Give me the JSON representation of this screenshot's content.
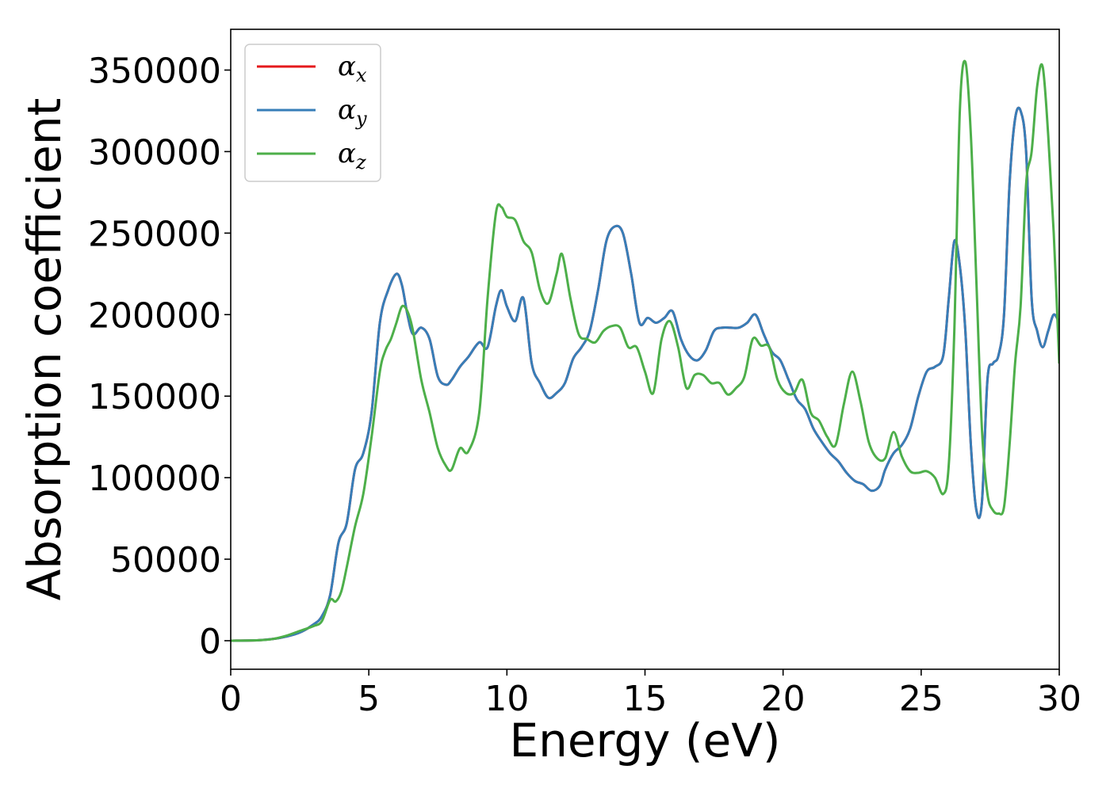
{
  "chart_data": {
    "type": "line",
    "xlabel": "Energy (eV)",
    "ylabel": "Absorption coefficient",
    "xlim": [
      0,
      30
    ],
    "ylim": [
      -17500,
      375000
    ],
    "x_ticks": [
      "0",
      "5",
      "10",
      "15",
      "20",
      "25",
      "30"
    ],
    "y_ticks": [
      "0",
      "50000",
      "100000",
      "150000",
      "200000",
      "250000",
      "300000",
      "350000"
    ],
    "grid": false,
    "legend_position": "top-left",
    "series": [
      {
        "name": "α",
        "subscript": "x",
        "color": "#e41a1c",
        "x": [
          0,
          1,
          1.5,
          2,
          2.5,
          3,
          3.3,
          3.6,
          3.9,
          4.2,
          4.5,
          4.8,
          5.1,
          5.4,
          5.7,
          6.0,
          6.2,
          6.4,
          6.6,
          6.9,
          7.2,
          7.5,
          7.8,
          8.0,
          8.3,
          8.6,
          9.0,
          9.3,
          9.6,
          9.8,
          10.0,
          10.3,
          10.6,
          10.9,
          11.2,
          11.5,
          11.8,
          12.1,
          12.4,
          12.7,
          13.0,
          13.3,
          13.6,
          13.9,
          14.2,
          14.5,
          14.8,
          15.1,
          15.4,
          15.7,
          16.0,
          16.3,
          16.6,
          16.9,
          17.2,
          17.5,
          17.8,
          18.1,
          18.4,
          18.7,
          19.0,
          19.3,
          19.6,
          19.9,
          20.2,
          20.5,
          20.8,
          21.1,
          21.4,
          21.7,
          22.0,
          22.3,
          22.6,
          22.9,
          23.2,
          23.5,
          23.7,
          24.0,
          24.3,
          24.6,
          24.9,
          25.2,
          25.5,
          25.8,
          26.0,
          26.2,
          26.4,
          26.6,
          26.8,
          27.0,
          27.2,
          27.4,
          27.6,
          27.8,
          28.0,
          28.2,
          28.4,
          28.6,
          28.8,
          29.0,
          29.2,
          29.4,
          29.6,
          29.8,
          30.0
        ],
        "y": [
          0,
          300,
          1000,
          2500,
          5000,
          10000,
          15000,
          28000,
          60000,
          72000,
          105000,
          115000,
          140000,
          195000,
          215000,
          225000,
          218000,
          200000,
          188000,
          192000,
          185000,
          162000,
          157000,
          160000,
          168000,
          174000,
          183000,
          180000,
          205000,
          215000,
          205000,
          196000,
          210000,
          170000,
          158000,
          149000,
          152000,
          158000,
          173000,
          180000,
          190000,
          215000,
          245000,
          254000,
          250000,
          225000,
          195000,
          198000,
          195000,
          198000,
          202000,
          185000,
          175000,
          172000,
          178000,
          190000,
          192000,
          192000,
          192000,
          195000,
          200000,
          188000,
          177000,
          172000,
          160000,
          148000,
          142000,
          130000,
          122000,
          115000,
          110000,
          103000,
          98000,
          96000,
          92000,
          95000,
          105000,
          115000,
          120000,
          130000,
          150000,
          165000,
          168000,
          175000,
          210000,
          245000,
          230000,
          190000,
          120000,
          80000,
          85000,
          160000,
          170000,
          175000,
          200000,
          280000,
          320000,
          325000,
          300000,
          210000,
          190000,
          180000,
          190000,
          200000,
          195000
        ]
      },
      {
        "name": "α",
        "subscript": "y",
        "color": "#377eb8",
        "x": [
          0,
          1,
          1.5,
          2,
          2.5,
          3,
          3.3,
          3.6,
          3.9,
          4.2,
          4.5,
          4.8,
          5.1,
          5.4,
          5.7,
          6.0,
          6.2,
          6.4,
          6.6,
          6.9,
          7.2,
          7.5,
          7.8,
          8.0,
          8.3,
          8.6,
          9.0,
          9.3,
          9.6,
          9.8,
          10.0,
          10.3,
          10.6,
          10.9,
          11.2,
          11.5,
          11.8,
          12.1,
          12.4,
          12.7,
          13.0,
          13.3,
          13.6,
          13.9,
          14.2,
          14.5,
          14.8,
          15.1,
          15.4,
          15.7,
          16.0,
          16.3,
          16.6,
          16.9,
          17.2,
          17.5,
          17.8,
          18.1,
          18.4,
          18.7,
          19.0,
          19.3,
          19.6,
          19.9,
          20.2,
          20.5,
          20.8,
          21.1,
          21.4,
          21.7,
          22.0,
          22.3,
          22.6,
          22.9,
          23.2,
          23.5,
          23.7,
          24.0,
          24.3,
          24.6,
          24.9,
          25.2,
          25.5,
          25.8,
          26.0,
          26.2,
          26.4,
          26.6,
          26.8,
          27.0,
          27.2,
          27.4,
          27.6,
          27.8,
          28.0,
          28.2,
          28.4,
          28.6,
          28.8,
          29.0,
          29.2,
          29.4,
          29.6,
          29.8,
          30.0
        ],
        "y": [
          0,
          300,
          1000,
          2500,
          5000,
          10000,
          15000,
          28000,
          60000,
          72000,
          105000,
          115000,
          140000,
          195000,
          215000,
          225000,
          218000,
          200000,
          188000,
          192000,
          185000,
          162000,
          157000,
          160000,
          168000,
          174000,
          183000,
          180000,
          205000,
          215000,
          205000,
          196000,
          210000,
          170000,
          158000,
          149000,
          152000,
          158000,
          173000,
          180000,
          190000,
          215000,
          245000,
          254000,
          250000,
          225000,
          195000,
          198000,
          195000,
          198000,
          202000,
          185000,
          175000,
          172000,
          178000,
          190000,
          192000,
          192000,
          192000,
          195000,
          200000,
          188000,
          177000,
          172000,
          160000,
          148000,
          142000,
          130000,
          122000,
          115000,
          110000,
          103000,
          98000,
          96000,
          92000,
          95000,
          105000,
          115000,
          120000,
          130000,
          150000,
          165000,
          168000,
          175000,
          210000,
          245000,
          230000,
          190000,
          120000,
          80000,
          85000,
          160000,
          170000,
          175000,
          200000,
          280000,
          320000,
          325000,
          300000,
          210000,
          190000,
          180000,
          190000,
          200000,
          195000
        ]
      },
      {
        "name": "α",
        "subscript": "z",
        "color": "#4daf4a",
        "x": [
          0,
          1,
          1.5,
          2,
          2.5,
          3,
          3.3,
          3.6,
          3.8,
          4.0,
          4.2,
          4.5,
          4.8,
          5.1,
          5.4,
          5.6,
          5.8,
          6.0,
          6.2,
          6.4,
          6.6,
          6.9,
          7.2,
          7.5,
          7.8,
          8.0,
          8.3,
          8.6,
          9.0,
          9.3,
          9.6,
          9.8,
          10.0,
          10.3,
          10.6,
          10.9,
          11.2,
          11.5,
          11.8,
          12.0,
          12.3,
          12.6,
          12.9,
          13.2,
          13.5,
          13.8,
          14.1,
          14.4,
          14.7,
          15.0,
          15.3,
          15.6,
          15.9,
          16.2,
          16.5,
          16.8,
          17.1,
          17.4,
          17.7,
          18.0,
          18.3,
          18.6,
          18.9,
          19.2,
          19.5,
          19.8,
          20.1,
          20.4,
          20.7,
          21.0,
          21.3,
          21.6,
          21.9,
          22.2,
          22.5,
          22.8,
          23.1,
          23.4,
          23.7,
          24.0,
          24.3,
          24.6,
          24.9,
          25.2,
          25.5,
          25.8,
          26.0,
          26.2,
          26.4,
          26.6,
          26.8,
          27.0,
          27.2,
          27.4,
          27.6,
          27.8,
          28.0,
          28.2,
          28.4,
          28.6,
          28.8,
          29.0,
          29.2,
          29.4,
          29.6,
          29.8,
          30.0
        ],
        "y": [
          0,
          300,
          1000,
          3000,
          6000,
          9000,
          12000,
          25000,
          24000,
          30000,
          45000,
          70000,
          90000,
          125000,
          165000,
          178000,
          185000,
          195000,
          205000,
          202000,
          190000,
          160000,
          140000,
          118000,
          107000,
          105000,
          118000,
          116000,
          140000,
          210000,
          262000,
          266000,
          260000,
          258000,
          245000,
          238000,
          215000,
          207000,
          225000,
          237000,
          210000,
          188000,
          185000,
          183000,
          190000,
          193000,
          192000,
          180000,
          180000,
          165000,
          152000,
          185000,
          196000,
          180000,
          155000,
          163000,
          163000,
          158000,
          158000,
          151000,
          155000,
          162000,
          185000,
          181000,
          180000,
          160000,
          152000,
          152000,
          160000,
          140000,
          135000,
          125000,
          120000,
          145000,
          165000,
          147000,
          122000,
          112000,
          112000,
          128000,
          113000,
          104000,
          103000,
          104000,
          100000,
          90000,
          108000,
          190000,
          325000,
          355000,
          310000,
          220000,
          130000,
          90000,
          80000,
          78000,
          82000,
          120000,
          170000,
          205000,
          280000,
          300000,
          340000,
          352000,
          310000,
          250000,
          170000
        ]
      }
    ]
  }
}
